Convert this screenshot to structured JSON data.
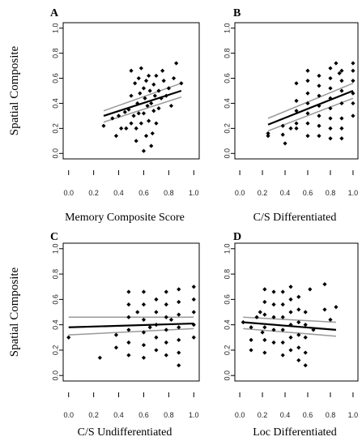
{
  "figure": {
    "y_axis_label": "Spatial Composite",
    "y_ticks": [
      "0.0",
      "0.2",
      "0.4",
      "0.6",
      "0.8",
      "1.0"
    ],
    "x_ticks": [
      "0.0",
      "0.2",
      "0.4",
      "0.6",
      "0.8",
      "1.0"
    ]
  },
  "chart_data": [
    {
      "type": "scatter",
      "panel": "A",
      "xlabel": "Memory Composite Score",
      "ylabel": "Spatial Composite",
      "xlim": [
        0,
        1
      ],
      "ylim": [
        0,
        1
      ],
      "fit": {
        "x": [
          0.28,
          0.9
        ],
        "y": [
          0.3,
          0.5
        ],
        "ci_upper": [
          0.34,
          0.56
        ],
        "ci_lower": [
          0.25,
          0.45
        ]
      },
      "points": [
        [
          0.28,
          0.22
        ],
        [
          0.35,
          0.28
        ],
        [
          0.38,
          0.14
        ],
        [
          0.4,
          0.3
        ],
        [
          0.42,
          0.2
        ],
        [
          0.45,
          0.33
        ],
        [
          0.46,
          0.2
        ],
        [
          0.48,
          0.35
        ],
        [
          0.5,
          0.66
        ],
        [
          0.5,
          0.46
        ],
        [
          0.52,
          0.3
        ],
        [
          0.53,
          0.56
        ],
        [
          0.54,
          0.2
        ],
        [
          0.55,
          0.4
        ],
        [
          0.56,
          0.6
        ],
        [
          0.57,
          0.48
        ],
        [
          0.58,
          0.24
        ],
        [
          0.58,
          0.68
        ],
        [
          0.6,
          0.52
        ],
        [
          0.6,
          0.32
        ],
        [
          0.61,
          0.44
        ],
        [
          0.62,
          0.14
        ],
        [
          0.62,
          0.58
        ],
        [
          0.63,
          0.38
        ],
        [
          0.64,
          0.62
        ],
        [
          0.64,
          0.26
        ],
        [
          0.65,
          0.5
        ],
        [
          0.66,
          0.4
        ],
        [
          0.66,
          0.06
        ],
        [
          0.67,
          0.16
        ],
        [
          0.68,
          0.55
        ],
        [
          0.68,
          0.34
        ],
        [
          0.69,
          0.46
        ],
        [
          0.7,
          0.24
        ],
        [
          0.7,
          0.62
        ],
        [
          0.72,
          0.36
        ],
        [
          0.72,
          0.5
        ],
        [
          0.74,
          0.44
        ],
        [
          0.75,
          0.66
        ],
        [
          0.76,
          0.58
        ],
        [
          0.78,
          0.46
        ],
        [
          0.8,
          0.52
        ],
        [
          0.82,
          0.38
        ],
        [
          0.84,
          0.6
        ],
        [
          0.86,
          0.72
        ],
        [
          0.9,
          0.56
        ],
        [
          0.54,
          0.1
        ],
        [
          0.6,
          0.02
        ],
        [
          0.5,
          0.24
        ],
        [
          0.56,
          0.32
        ]
      ]
    },
    {
      "type": "scatter",
      "panel": "B",
      "xlabel": "C/S Differentiated",
      "ylabel": "",
      "xlim": [
        0,
        1
      ],
      "ylim": [
        0,
        1
      ],
      "fit": {
        "x": [
          0.25,
          1.0
        ],
        "y": [
          0.23,
          0.5
        ],
        "ci_upper": [
          0.28,
          0.56
        ],
        "ci_lower": [
          0.18,
          0.44
        ]
      },
      "points": [
        [
          0.25,
          0.14
        ],
        [
          0.25,
          0.16
        ],
        [
          0.38,
          0.15
        ],
        [
          0.38,
          0.22
        ],
        [
          0.4,
          0.08
        ],
        [
          0.5,
          0.2
        ],
        [
          0.5,
          0.24
        ],
        [
          0.5,
          0.34
        ],
        [
          0.5,
          0.56
        ],
        [
          0.5,
          0.42
        ],
        [
          0.6,
          0.14
        ],
        [
          0.6,
          0.24
        ],
        [
          0.6,
          0.32
        ],
        [
          0.6,
          0.4
        ],
        [
          0.6,
          0.48
        ],
        [
          0.6,
          0.58
        ],
        [
          0.6,
          0.66
        ],
        [
          0.7,
          0.14
        ],
        [
          0.7,
          0.22
        ],
        [
          0.7,
          0.3
        ],
        [
          0.7,
          0.38
        ],
        [
          0.7,
          0.46
        ],
        [
          0.7,
          0.54
        ],
        [
          0.7,
          0.62
        ],
        [
          0.8,
          0.12
        ],
        [
          0.8,
          0.2
        ],
        [
          0.8,
          0.28
        ],
        [
          0.8,
          0.36
        ],
        [
          0.8,
          0.44
        ],
        [
          0.8,
          0.52
        ],
        [
          0.8,
          0.6
        ],
        [
          0.8,
          0.68
        ],
        [
          0.85,
          0.72
        ],
        [
          0.88,
          0.64
        ],
        [
          0.9,
          0.12
        ],
        [
          0.9,
          0.2
        ],
        [
          0.9,
          0.28
        ],
        [
          0.9,
          0.4
        ],
        [
          0.9,
          0.5
        ],
        [
          0.9,
          0.58
        ],
        [
          0.9,
          0.66
        ],
        [
          1.0,
          0.3
        ],
        [
          1.0,
          0.4
        ],
        [
          1.0,
          0.48
        ],
        [
          1.0,
          0.58
        ],
        [
          1.0,
          0.66
        ],
        [
          1.0,
          0.72
        ],
        [
          0.45,
          0.2
        ]
      ]
    },
    {
      "type": "scatter",
      "panel": "C",
      "xlabel": "C/S Undifferentiated",
      "ylabel": "Spatial Composite",
      "xlim": [
        0,
        1
      ],
      "ylim": [
        0,
        1
      ],
      "fit": {
        "x": [
          0.0,
          1.0
        ],
        "y": [
          0.38,
          0.41
        ],
        "ci_upper": [
          0.46,
          0.46
        ],
        "ci_lower": [
          0.32,
          0.37
        ]
      },
      "points": [
        [
          0.0,
          0.3
        ],
        [
          0.25,
          0.14
        ],
        [
          0.38,
          0.32
        ],
        [
          0.38,
          0.22
        ],
        [
          0.48,
          0.66
        ],
        [
          0.48,
          0.56
        ],
        [
          0.48,
          0.46
        ],
        [
          0.48,
          0.36
        ],
        [
          0.48,
          0.26
        ],
        [
          0.48,
          0.16
        ],
        [
          0.6,
          0.66
        ],
        [
          0.6,
          0.56
        ],
        [
          0.6,
          0.44
        ],
        [
          0.6,
          0.34
        ],
        [
          0.6,
          0.24
        ],
        [
          0.6,
          0.14
        ],
        [
          0.7,
          0.6
        ],
        [
          0.7,
          0.5
        ],
        [
          0.7,
          0.4
        ],
        [
          0.7,
          0.3
        ],
        [
          0.7,
          0.2
        ],
        [
          0.78,
          0.66
        ],
        [
          0.78,
          0.56
        ],
        [
          0.78,
          0.46
        ],
        [
          0.78,
          0.36
        ],
        [
          0.78,
          0.26
        ],
        [
          0.78,
          0.16
        ],
        [
          0.82,
          0.44
        ],
        [
          0.88,
          0.68
        ],
        [
          0.88,
          0.58
        ],
        [
          0.88,
          0.48
        ],
        [
          0.88,
          0.38
        ],
        [
          0.88,
          0.28
        ],
        [
          0.88,
          0.18
        ],
        [
          0.88,
          0.08
        ],
        [
          1.0,
          0.7
        ],
        [
          1.0,
          0.6
        ],
        [
          1.0,
          0.5
        ],
        [
          1.0,
          0.4
        ],
        [
          1.0,
          0.3
        ],
        [
          0.55,
          0.5
        ],
        [
          0.65,
          0.38
        ]
      ]
    },
    {
      "type": "scatter",
      "panel": "D",
      "xlabel": "Loc Differentiated",
      "ylabel": "",
      "xlim": [
        0,
        1
      ],
      "ylim": [
        0,
        1
      ],
      "fit": {
        "x": [
          0.03,
          0.85
        ],
        "y": [
          0.42,
          0.36
        ],
        "ci_upper": [
          0.46,
          0.42
        ],
        "ci_lower": [
          0.37,
          0.31
        ]
      },
      "points": [
        [
          0.03,
          0.42
        ],
        [
          0.1,
          0.38
        ],
        [
          0.1,
          0.28
        ],
        [
          0.1,
          0.2
        ],
        [
          0.15,
          0.46
        ],
        [
          0.18,
          0.5
        ],
        [
          0.2,
          0.34
        ],
        [
          0.22,
          0.68
        ],
        [
          0.22,
          0.58
        ],
        [
          0.22,
          0.48
        ],
        [
          0.22,
          0.38
        ],
        [
          0.22,
          0.28
        ],
        [
          0.22,
          0.18
        ],
        [
          0.3,
          0.66
        ],
        [
          0.3,
          0.56
        ],
        [
          0.3,
          0.46
        ],
        [
          0.3,
          0.36
        ],
        [
          0.3,
          0.26
        ],
        [
          0.38,
          0.66
        ],
        [
          0.38,
          0.56
        ],
        [
          0.38,
          0.46
        ],
        [
          0.38,
          0.36
        ],
        [
          0.38,
          0.26
        ],
        [
          0.38,
          0.16
        ],
        [
          0.45,
          0.7
        ],
        [
          0.45,
          0.6
        ],
        [
          0.45,
          0.5
        ],
        [
          0.45,
          0.4
        ],
        [
          0.45,
          0.3
        ],
        [
          0.45,
          0.2
        ],
        [
          0.52,
          0.62
        ],
        [
          0.52,
          0.52
        ],
        [
          0.52,
          0.42
        ],
        [
          0.52,
          0.32
        ],
        [
          0.52,
          0.22
        ],
        [
          0.52,
          0.12
        ],
        [
          0.58,
          0.5
        ],
        [
          0.58,
          0.4
        ],
        [
          0.58,
          0.3
        ],
        [
          0.58,
          0.18
        ],
        [
          0.58,
          0.08
        ],
        [
          0.62,
          0.68
        ],
        [
          0.65,
          0.36
        ],
        [
          0.75,
          0.72
        ],
        [
          0.75,
          0.52
        ],
        [
          0.8,
          0.44
        ],
        [
          0.85,
          0.54
        ]
      ]
    }
  ]
}
